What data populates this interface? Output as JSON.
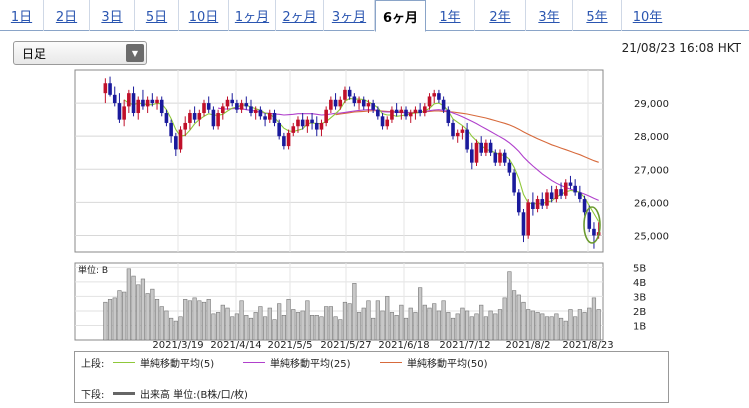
{
  "tabs": [
    {
      "label": "1日",
      "active": false
    },
    {
      "label": "2日",
      "active": false
    },
    {
      "label": "3日",
      "active": false
    },
    {
      "label": "5日",
      "active": false
    },
    {
      "label": "10日",
      "active": false
    },
    {
      "label": "1ヶ月",
      "active": false
    },
    {
      "label": "2ヶ月",
      "active": false
    },
    {
      "label": "3ヶ月",
      "active": false
    },
    {
      "label": "6ヶ月",
      "active": true
    },
    {
      "label": "1年",
      "active": false
    },
    {
      "label": "2年",
      "active": false
    },
    {
      "label": "3年",
      "active": false
    },
    {
      "label": "5年",
      "active": false
    },
    {
      "label": "10年",
      "active": false
    }
  ],
  "period_select": {
    "value": "日足",
    "arrow_icon": "triangle-down-icon"
  },
  "timestamp": "21/08/23 16:08 HKT",
  "chart_data": {
    "type": "candlestick",
    "price_axis": {
      "ticks": [
        "29,000",
        "28,000",
        "27,000",
        "26,000",
        "25,000"
      ],
      "tick_values": [
        29000,
        28000,
        27000,
        26000,
        25000
      ],
      "range": [
        24500,
        30000
      ]
    },
    "x_ticks": [
      "2021/3/19",
      "2021/4/14",
      "2021/5/5",
      "2021/5/27",
      "2021/6/18",
      "2021/7/12",
      "2021/8/2",
      "2021/8/23"
    ],
    "volume_axis": {
      "unit_label": "単位: B",
      "ticks": [
        "5B",
        "4B",
        "3B",
        "2B",
        "1B"
      ],
      "tick_values": [
        5,
        4,
        3,
        2,
        1
      ],
      "range": [
        0,
        5.3
      ]
    },
    "colors": {
      "up": "#c0102a",
      "down": "#1a1a9c",
      "ma5": "#8fc83a",
      "ma25": "#b040cc",
      "ma50": "#d76a3c",
      "volume": "#a0a0a0",
      "highlight": "#6a9a2e"
    },
    "candles": [
      {
        "o": 29300,
        "h": 29750,
        "l": 29000,
        "c": 29600
      },
      {
        "o": 29600,
        "h": 29800,
        "l": 29200,
        "c": 29250
      },
      {
        "o": 29250,
        "h": 29500,
        "l": 28900,
        "c": 29000
      },
      {
        "o": 29000,
        "h": 29300,
        "l": 28400,
        "c": 28500
      },
      {
        "o": 28500,
        "h": 29100,
        "l": 28300,
        "c": 28900
      },
      {
        "o": 28900,
        "h": 29400,
        "l": 28700,
        "c": 29300
      },
      {
        "o": 29300,
        "h": 29500,
        "l": 28600,
        "c": 28700
      },
      {
        "o": 28700,
        "h": 29200,
        "l": 28500,
        "c": 29100
      },
      {
        "o": 29100,
        "h": 29400,
        "l": 28800,
        "c": 28900
      },
      {
        "o": 28900,
        "h": 29200,
        "l": 28700,
        "c": 29100
      },
      {
        "o": 29100,
        "h": 29300,
        "l": 28900,
        "c": 29000
      },
      {
        "o": 29000,
        "h": 29200,
        "l": 28800,
        "c": 29100
      },
      {
        "o": 29100,
        "h": 29200,
        "l": 28600,
        "c": 28700
      },
      {
        "o": 28700,
        "h": 28800,
        "l": 28300,
        "c": 28400
      },
      {
        "o": 28400,
        "h": 28500,
        "l": 27800,
        "c": 28000
      },
      {
        "o": 28000,
        "h": 28100,
        "l": 27400,
        "c": 27600
      },
      {
        "o": 27600,
        "h": 28300,
        "l": 27500,
        "c": 28200
      },
      {
        "o": 28200,
        "h": 28600,
        "l": 28000,
        "c": 28400
      },
      {
        "o": 28400,
        "h": 28800,
        "l": 28200,
        "c": 28700
      },
      {
        "o": 28700,
        "h": 28900,
        "l": 28400,
        "c": 28500
      },
      {
        "o": 28500,
        "h": 28800,
        "l": 28300,
        "c": 28700
      },
      {
        "o": 28700,
        "h": 29100,
        "l": 28600,
        "c": 29000
      },
      {
        "o": 29000,
        "h": 29200,
        "l": 28700,
        "c": 28800
      },
      {
        "o": 28800,
        "h": 28900,
        "l": 28200,
        "c": 28300
      },
      {
        "o": 28300,
        "h": 28800,
        "l": 28200,
        "c": 28700
      },
      {
        "o": 28700,
        "h": 29000,
        "l": 28500,
        "c": 28900
      },
      {
        "o": 28900,
        "h": 29200,
        "l": 28800,
        "c": 29100
      },
      {
        "o": 29100,
        "h": 29300,
        "l": 28900,
        "c": 29000
      },
      {
        "o": 29000,
        "h": 29100,
        "l": 28700,
        "c": 28800
      },
      {
        "o": 28800,
        "h": 29100,
        "l": 28700,
        "c": 29000
      },
      {
        "o": 29000,
        "h": 29200,
        "l": 28800,
        "c": 28900
      },
      {
        "o": 28900,
        "h": 29100,
        "l": 28600,
        "c": 28700
      },
      {
        "o": 28700,
        "h": 28900,
        "l": 28500,
        "c": 28800
      },
      {
        "o": 28800,
        "h": 28900,
        "l": 28500,
        "c": 28600
      },
      {
        "o": 28600,
        "h": 28700,
        "l": 28300,
        "c": 28500
      },
      {
        "o": 28500,
        "h": 28800,
        "l": 28400,
        "c": 28700
      },
      {
        "o": 28700,
        "h": 28800,
        "l": 28300,
        "c": 28400
      },
      {
        "o": 28400,
        "h": 28500,
        "l": 27900,
        "c": 28000
      },
      {
        "o": 28000,
        "h": 28100,
        "l": 27600,
        "c": 27700
      },
      {
        "o": 27700,
        "h": 28200,
        "l": 27600,
        "c": 28100
      },
      {
        "o": 28100,
        "h": 28400,
        "l": 28000,
        "c": 28300
      },
      {
        "o": 28300,
        "h": 28600,
        "l": 28100,
        "c": 28500
      },
      {
        "o": 28500,
        "h": 28700,
        "l": 28200,
        "c": 28300
      },
      {
        "o": 28300,
        "h": 28600,
        "l": 28100,
        "c": 28500
      },
      {
        "o": 28500,
        "h": 28700,
        "l": 28200,
        "c": 28400
      },
      {
        "o": 28400,
        "h": 28600,
        "l": 28000,
        "c": 28200
      },
      {
        "o": 28200,
        "h": 28500,
        "l": 28000,
        "c": 28400
      },
      {
        "o": 28400,
        "h": 28900,
        "l": 28300,
        "c": 28800
      },
      {
        "o": 28800,
        "h": 29200,
        "l": 28700,
        "c": 29100
      },
      {
        "o": 29100,
        "h": 29300,
        "l": 28800,
        "c": 28900
      },
      {
        "o": 28900,
        "h": 29200,
        "l": 28800,
        "c": 29100
      },
      {
        "o": 29100,
        "h": 29500,
        "l": 29000,
        "c": 29400
      },
      {
        "o": 29400,
        "h": 29500,
        "l": 29100,
        "c": 29200
      },
      {
        "o": 29200,
        "h": 29300,
        "l": 28900,
        "c": 29000
      },
      {
        "o": 29000,
        "h": 29200,
        "l": 28800,
        "c": 29100
      },
      {
        "o": 29100,
        "h": 29200,
        "l": 28800,
        "c": 28900
      },
      {
        "o": 28900,
        "h": 29100,
        "l": 28700,
        "c": 29000
      },
      {
        "o": 29000,
        "h": 29100,
        "l": 28700,
        "c": 28800
      },
      {
        "o": 28800,
        "h": 28900,
        "l": 28500,
        "c": 28600
      },
      {
        "o": 28600,
        "h": 28700,
        "l": 28200,
        "c": 28300
      },
      {
        "o": 28300,
        "h": 28600,
        "l": 28200,
        "c": 28500
      },
      {
        "o": 28500,
        "h": 28900,
        "l": 28400,
        "c": 28800
      },
      {
        "o": 28800,
        "h": 29000,
        "l": 28600,
        "c": 28700
      },
      {
        "o": 28700,
        "h": 28900,
        "l": 28500,
        "c": 28800
      },
      {
        "o": 28800,
        "h": 28900,
        "l": 28500,
        "c": 28600
      },
      {
        "o": 28600,
        "h": 28800,
        "l": 28400,
        "c": 28700
      },
      {
        "o": 28700,
        "h": 28900,
        "l": 28500,
        "c": 28800
      },
      {
        "o": 28800,
        "h": 29000,
        "l": 28600,
        "c": 28700
      },
      {
        "o": 28700,
        "h": 29000,
        "l": 28600,
        "c": 28900
      },
      {
        "o": 28900,
        "h": 29300,
        "l": 28800,
        "c": 29200
      },
      {
        "o": 29200,
        "h": 29400,
        "l": 29000,
        "c": 29300
      },
      {
        "o": 29300,
        "h": 29400,
        "l": 29000,
        "c": 29100
      },
      {
        "o": 29100,
        "h": 29200,
        "l": 28700,
        "c": 28800
      },
      {
        "o": 28800,
        "h": 28900,
        "l": 28300,
        "c": 28400
      },
      {
        "o": 28400,
        "h": 28500,
        "l": 27900,
        "c": 28000
      },
      {
        "o": 28000,
        "h": 28200,
        "l": 27800,
        "c": 28100
      },
      {
        "o": 28100,
        "h": 28300,
        "l": 27900,
        "c": 28200
      },
      {
        "o": 28200,
        "h": 28400,
        "l": 27500,
        "c": 27600
      },
      {
        "o": 27600,
        "h": 27800,
        "l": 27000,
        "c": 27200
      },
      {
        "o": 27200,
        "h": 27900,
        "l": 27100,
        "c": 27800
      },
      {
        "o": 27800,
        "h": 28000,
        "l": 27400,
        "c": 27500
      },
      {
        "o": 27500,
        "h": 27900,
        "l": 27400,
        "c": 27800
      },
      {
        "o": 27800,
        "h": 27900,
        "l": 27400,
        "c": 27500
      },
      {
        "o": 27500,
        "h": 27600,
        "l": 27100,
        "c": 27200
      },
      {
        "o": 27200,
        "h": 27600,
        "l": 27100,
        "c": 27500
      },
      {
        "o": 27500,
        "h": 27600,
        "l": 27100,
        "c": 27200
      },
      {
        "o": 27200,
        "h": 27300,
        "l": 26800,
        "c": 26900
      },
      {
        "o": 26900,
        "h": 27000,
        "l": 26200,
        "c": 26300
      },
      {
        "o": 26300,
        "h": 26400,
        "l": 25600,
        "c": 25700
      },
      {
        "o": 25700,
        "h": 25800,
        "l": 24800,
        "c": 25000
      },
      {
        "o": 25000,
        "h": 26100,
        "l": 24900,
        "c": 26000
      },
      {
        "o": 26000,
        "h": 26300,
        "l": 25600,
        "c": 25800
      },
      {
        "o": 25800,
        "h": 26200,
        "l": 25700,
        "c": 26100
      },
      {
        "o": 26100,
        "h": 26300,
        "l": 25800,
        "c": 25900
      },
      {
        "o": 25900,
        "h": 26400,
        "l": 25800,
        "c": 26300
      },
      {
        "o": 26300,
        "h": 26500,
        "l": 26000,
        "c": 26100
      },
      {
        "o": 26100,
        "h": 26500,
        "l": 26000,
        "c": 26400
      },
      {
        "o": 26400,
        "h": 26600,
        "l": 26100,
        "c": 26200
      },
      {
        "o": 26200,
        "h": 26700,
        "l": 26100,
        "c": 26600
      },
      {
        "o": 26600,
        "h": 26800,
        "l": 26400,
        "c": 26500
      },
      {
        "o": 26500,
        "h": 26700,
        "l": 26200,
        "c": 26300
      },
      {
        "o": 26300,
        "h": 26500,
        "l": 26000,
        "c": 26100
      },
      {
        "o": 26100,
        "h": 26200,
        "l": 25600,
        "c": 25700
      },
      {
        "o": 25700,
        "h": 25900,
        "l": 25100,
        "c": 25200
      },
      {
        "o": 25200,
        "h": 25400,
        "l": 24600,
        "c": 25000
      },
      {
        "o": 25000,
        "h": 25400,
        "l": 24900,
        "c": 25100
      }
    ],
    "volume": [
      2.6,
      2.8,
      2.9,
      3.4,
      3.3,
      4.9,
      4.4,
      3.8,
      4.2,
      3.2,
      3.5,
      2.8,
      2.3,
      2.0,
      1.5,
      1.3,
      1.6,
      2.8,
      2.7,
      2.9,
      2.7,
      2.6,
      2.8,
      1.8,
      1.9,
      2.4,
      2.2,
      1.6,
      1.8,
      2.7,
      1.7,
      1.5,
      1.9,
      2.3,
      1.6,
      2.2,
      1.4,
      2.5,
      1.7,
      2.8,
      2.1,
      1.9,
      2.0,
      2.7,
      1.7,
      1.7,
      1.6,
      2.3,
      2.3,
      1.6,
      1.4,
      2.6,
      2.5,
      3.9,
      1.9,
      2.2,
      2.7,
      1.5,
      2.7,
      2.0,
      3.0,
      1.9,
      1.7,
      2.4,
      1.5,
      2.2,
      1.9,
      3.6,
      2.4,
      2.2,
      2.5,
      2.0,
      2.7,
      1.9,
      1.5,
      1.8,
      2.2,
      2.0,
      1.6,
      1.8,
      2.4,
      1.6,
      2.0,
      1.8,
      2.1,
      2.9,
      4.7,
      3.4,
      3.1,
      2.6,
      2.1,
      2.0,
      1.9,
      1.8,
      1.6,
      1.6,
      1.8,
      1.5,
      1.3,
      2.1,
      1.6,
      2.1,
      1.9,
      2.2,
      2.9,
      2.1
    ],
    "ma5": [
      null,
      null,
      null,
      null,
      29100,
      29000,
      28950,
      29000,
      28980,
      28950,
      28950,
      28990,
      28980,
      28800,
      28530,
      28200,
      28000,
      28030,
      28180,
      28370,
      28500,
      28600,
      28680,
      28640,
      28630,
      28660,
      28760,
      28850,
      28880,
      28940,
      28940,
      28880,
      28830,
      28780,
      28700,
      28660,
      28560,
      28400,
      28240,
      28160,
      28140,
      28180,
      28220,
      28380,
      28400,
      28380,
      28380,
      28440,
      28560,
      28680,
      28820,
      29060,
      29140,
      29120,
      29120,
      29110,
      29040,
      28960,
      28860,
      28680,
      28640,
      28640,
      28600,
      28620,
      28640,
      28680,
      28700,
      28720,
      28760,
      28840,
      28980,
      29000,
      28920,
      28760,
      28520,
      28420,
      28320,
      28200,
      28000,
      27860,
      27720,
      27600,
      27560,
      27500,
      27440,
      27420,
      27300,
      27060,
      26720,
      26240,
      25980,
      25960,
      25960,
      25960,
      26020,
      26040,
      26160,
      26240,
      26320,
      26360,
      26340,
      26300,
      26140,
      25900,
      25660,
      25420
    ],
    "ma25": [
      null,
      null,
      null,
      null,
      null,
      null,
      null,
      null,
      null,
      null,
      null,
      null,
      null,
      null,
      null,
      null,
      null,
      null,
      null,
      null,
      null,
      null,
      null,
      null,
      28850,
      28820,
      28820,
      28830,
      28840,
      28830,
      28800,
      28780,
      28760,
      28720,
      28700,
      28690,
      28670,
      28660,
      28640,
      28650,
      28660,
      28680,
      28680,
      28680,
      28680,
      28660,
      28640,
      28650,
      28670,
      28690,
      28700,
      28720,
      28740,
      28760,
      28780,
      28790,
      28800,
      28800,
      28780,
      28740,
      28730,
      28730,
      28720,
      28720,
      28710,
      28700,
      28700,
      28720,
      28740,
      28770,
      28790,
      28800,
      28780,
      28750,
      28700,
      28650,
      28590,
      28520,
      28450,
      28380,
      28300,
      28220,
      28140,
      28060,
      27980,
      27900,
      27800,
      27680,
      27540,
      27370,
      27230,
      27100,
      26980,
      26860,
      26760,
      26660,
      26580,
      26510,
      26450,
      26400,
      26350,
      26300,
      26250,
      26190,
      26120,
      26060
    ],
    "ma50": [
      null,
      null,
      null,
      null,
      null,
      null,
      null,
      null,
      null,
      null,
      null,
      null,
      null,
      null,
      null,
      null,
      null,
      null,
      null,
      null,
      null,
      null,
      null,
      null,
      null,
      null,
      null,
      null,
      null,
      null,
      null,
      null,
      null,
      null,
      null,
      null,
      null,
      null,
      null,
      null,
      null,
      null,
      null,
      null,
      null,
      null,
      null,
      null,
      null,
      28650,
      28670,
      28690,
      28710,
      28730,
      28740,
      28750,
      28760,
      28770,
      28770,
      28760,
      28750,
      28740,
      28740,
      28730,
      28720,
      28720,
      28720,
      28730,
      28740,
      28750,
      28760,
      28760,
      28750,
      28740,
      28730,
      28710,
      28690,
      28670,
      28640,
      28610,
      28580,
      28550,
      28510,
      28470,
      28430,
      28390,
      28340,
      28280,
      28210,
      28130,
      28060,
      27990,
      27920,
      27860,
      27800,
      27740,
      27690,
      27640,
      27590,
      27540,
      27490,
      27440,
      27380,
      27320,
      27260,
      27210
    ]
  },
  "legend": {
    "upper_label": "上段:",
    "ma5_label": "単純移動平均(5)",
    "ma25_label": "単純移動平均(25)",
    "ma50_label": "単純移動平均(50)",
    "lower_label": "下段:",
    "volume_label": "出来高 単位:(B株/口/枚)"
  }
}
